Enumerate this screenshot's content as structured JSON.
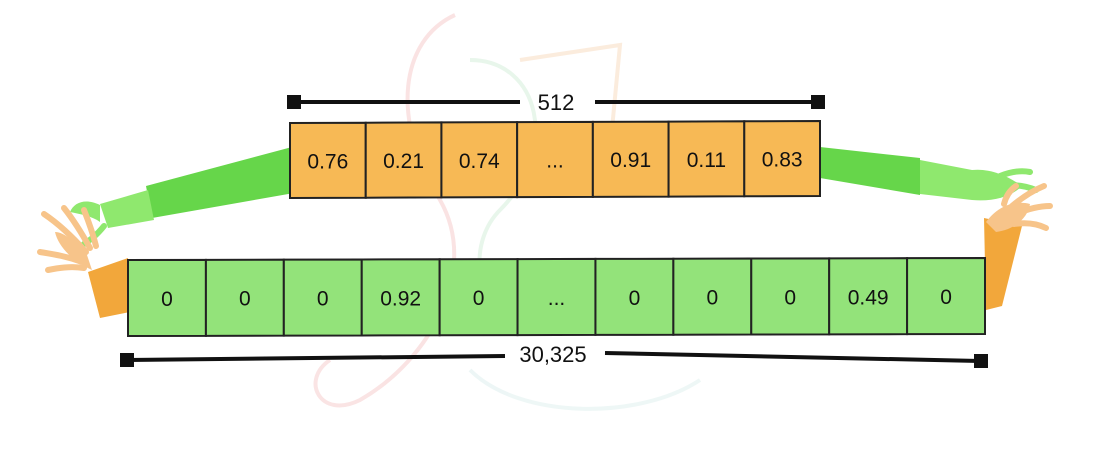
{
  "diagram": {
    "dense_vector": {
      "dimension_label": "512",
      "values": [
        "0.76",
        "0.21",
        "0.74",
        "...",
        "0.91",
        "0.11",
        "0.83"
      ],
      "fill_color": "#f7b955"
    },
    "sparse_vector": {
      "dimension_label": "30,325",
      "values": [
        "0",
        "0",
        "0",
        "0.92",
        "0",
        "...",
        "0",
        "0",
        "0",
        "0.49",
        "0"
      ],
      "fill_color": "#93e37a"
    },
    "colors": {
      "green_arm": "#66d64a",
      "green_hand": "#8fe86e",
      "orange_arm": "#f2a73b",
      "orange_hand": "#f7c48a",
      "cell_border": "#222222",
      "watermark": "#f3c6c6"
    },
    "icons": [
      "left-stretching-hands-icon",
      "right-stretching-hands-icon",
      "music-note-watermark-icon"
    ]
  }
}
